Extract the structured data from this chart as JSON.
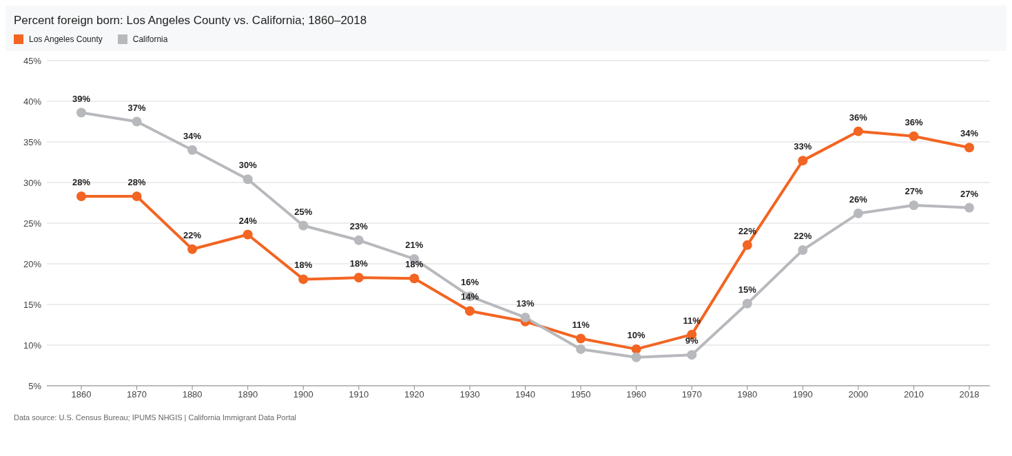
{
  "chart_data": {
    "type": "line",
    "title": "Percent foreign born: Los Angeles County vs. California; 1860–2018",
    "categories": [
      "1860",
      "1870",
      "1880",
      "1890",
      "1900",
      "1910",
      "1920",
      "1930",
      "1940",
      "1950",
      "1960",
      "1970",
      "1980",
      "1990",
      "2000",
      "2010",
      "2018"
    ],
    "series": [
      {
        "name": "Los Angeles County",
        "color": "#f26522",
        "values": [
          28.3,
          28.3,
          21.8,
          23.6,
          18.1,
          18.3,
          18.2,
          14.2,
          12.9,
          10.8,
          9.5,
          11.3,
          22.3,
          32.7,
          36.3,
          35.7,
          34.3
        ],
        "value_labels": [
          "28%",
          "28%",
          "22%",
          "24%",
          "18%",
          "18%",
          "18%",
          "14%",
          null,
          "11%",
          "10%",
          "11%",
          "22%",
          "33%",
          "36%",
          "36%",
          "34%"
        ]
      },
      {
        "name": "California",
        "color": "#b7b9bd",
        "values": [
          38.6,
          37.5,
          34.0,
          30.4,
          24.7,
          22.9,
          20.6,
          16.0,
          13.4,
          9.5,
          8.5,
          8.8,
          15.1,
          21.7,
          26.2,
          27.2,
          26.9
        ],
        "value_labels": [
          "39%",
          "37%",
          "34%",
          "30%",
          "25%",
          "23%",
          "21%",
          "16%",
          "13%",
          null,
          null,
          "9%",
          "15%",
          "22%",
          "26%",
          "27%",
          "27%"
        ]
      }
    ],
    "ylim": [
      5,
      45
    ],
    "yticks": [
      {
        "value": 5,
        "label": "5%"
      },
      {
        "value": 10,
        "label": "10%"
      },
      {
        "value": 15,
        "label": "15%"
      },
      {
        "value": 20,
        "label": "20%"
      },
      {
        "value": 25,
        "label": "25%"
      },
      {
        "value": 30,
        "label": "30%"
      },
      {
        "value": 35,
        "label": "35%"
      },
      {
        "value": 40,
        "label": "40%"
      },
      {
        "value": 45,
        "label": "45%"
      }
    ],
    "grid": "y",
    "legend": "top left",
    "marker": "circle",
    "line_style": "solid",
    "annotations": [
      "Data source: U.S. Census Bureau; IPUMS NHGIS | California Immigrant Data Portal"
    ]
  }
}
